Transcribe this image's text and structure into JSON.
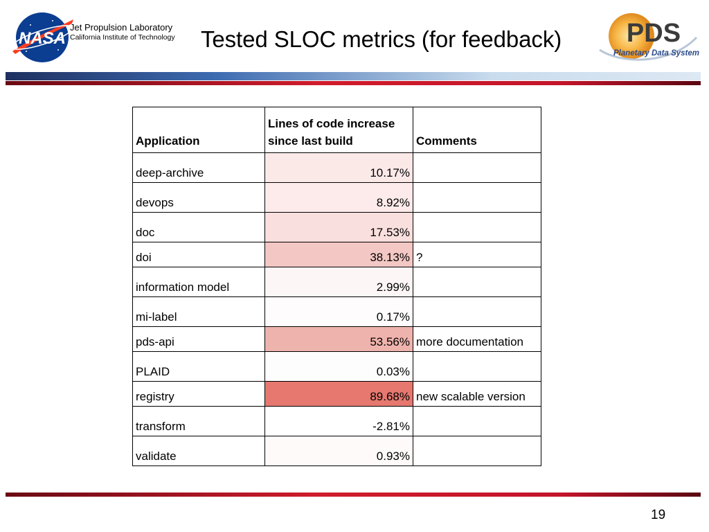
{
  "header": {
    "org_name": "Jet Propulsion Laboratory",
    "org_subtitle": "California Institute of Technology",
    "title": "Tested SLOC metrics (for feedback)",
    "nasa_logo_text": "NASA",
    "pds_logo_text": "PDS",
    "pds_logo_subtitle": "Planetary Data System"
  },
  "table": {
    "headers": {
      "application": "Application",
      "loc_line1": "Lines of code increase",
      "loc_line2": "since last build",
      "comments": "Comments"
    },
    "rows": [
      {
        "application": "deep-archive",
        "increase": "10.17%",
        "comment": "",
        "shade": "#fbe9e8"
      },
      {
        "application": "devops",
        "increase": "8.92%",
        "comment": "",
        "shade": "#fcebea"
      },
      {
        "application": "doc",
        "increase": "17.53%",
        "comment": "",
        "shade": "#f9dfdd"
      },
      {
        "application": "doi",
        "increase": "38.13%",
        "comment": "?",
        "shade": "#f3c7c3"
      },
      {
        "application": "information model",
        "increase": "2.99%",
        "comment": "",
        "shade": "#fdf6f6"
      },
      {
        "application": "mi-label",
        "increase": "0.17%",
        "comment": "",
        "shade": "#fefcfc"
      },
      {
        "application": "pds-api",
        "increase": "53.56%",
        "comment": "more documentation",
        "shade": "#efb3ad"
      },
      {
        "application": "PLAID",
        "increase": "0.03%",
        "comment": "",
        "shade": "#fefdfd"
      },
      {
        "application": "registry",
        "increase": "89.68%",
        "comment": "new scalable version",
        "shade": "#e6786f"
      },
      {
        "application": "transform",
        "increase": "-2.81%",
        "comment": "",
        "shade": "#ffffff"
      },
      {
        "application": "validate",
        "increase": "0.93%",
        "comment": "",
        "shade": "#fefafa"
      }
    ]
  },
  "footer": {
    "page_number": "19"
  }
}
